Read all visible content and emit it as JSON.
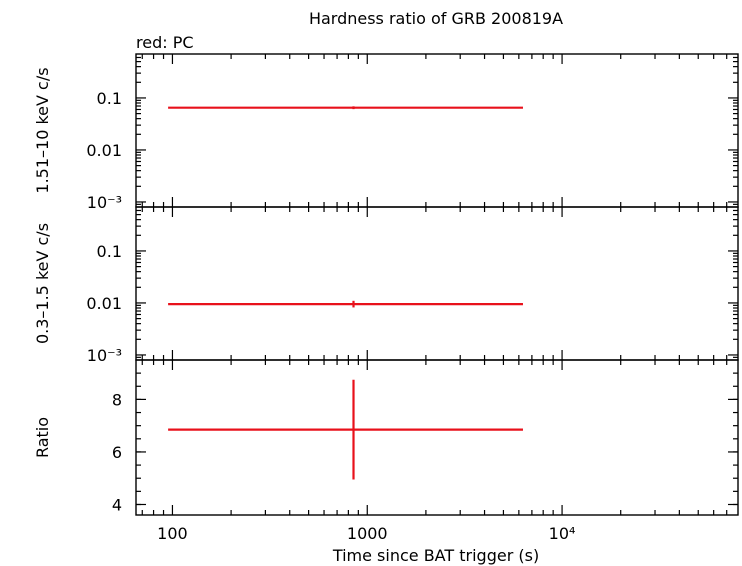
{
  "chart_data": {
    "type": "scatter",
    "title": "Hardness ratio of GRB 200819A",
    "legend": "red: PC",
    "series_color": "#e8111b",
    "x_axis": {
      "label": "Time since BAT trigger (s)",
      "scale": "log",
      "range": [
        65,
        80000
      ],
      "ticks": [
        {
          "value": 100,
          "label": "100"
        },
        {
          "value": 1000,
          "label": "1000"
        },
        {
          "value": 10000,
          "label": "10⁴"
        }
      ]
    },
    "panels": [
      {
        "id": "hard",
        "ylabel": "1.51–10 keV c/s",
        "scale": "log",
        "ylim": [
          0.0008,
          0.7
        ],
        "ticks": [
          {
            "value": 0.1,
            "label": "0.1"
          },
          {
            "value": 0.01,
            "label": "0.01"
          },
          {
            "value": 0.001,
            "label": "10⁻³"
          }
        ],
        "points": [
          {
            "x": 850,
            "x_lo": 95,
            "x_hi": 6300,
            "y": 0.065,
            "y_lo": 0.061,
            "y_hi": 0.069
          }
        ]
      },
      {
        "id": "soft",
        "ylabel": "0.3–1.5 keV c/s",
        "scale": "log",
        "ylim": [
          0.0008,
          0.7
        ],
        "ticks": [
          {
            "value": 0.1,
            "label": "0.1"
          },
          {
            "value": 0.01,
            "label": "0.01"
          },
          {
            "value": 0.001,
            "label": "10⁻³"
          }
        ],
        "points": [
          {
            "x": 850,
            "x_lo": 95,
            "x_hi": 6300,
            "y": 0.0095,
            "y_lo": 0.0082,
            "y_hi": 0.011
          }
        ]
      },
      {
        "id": "ratio",
        "ylabel": "Ratio",
        "scale": "linear",
        "ylim": [
          3.6,
          9.5
        ],
        "ticks": [
          {
            "value": 4,
            "label": "4"
          },
          {
            "value": 6,
            "label": "6"
          },
          {
            "value": 8,
            "label": "8"
          }
        ],
        "points": [
          {
            "x": 850,
            "x_lo": 95,
            "x_hi": 6300,
            "y": 6.85,
            "y_lo": 4.95,
            "y_hi": 8.75
          }
        ]
      }
    ]
  }
}
